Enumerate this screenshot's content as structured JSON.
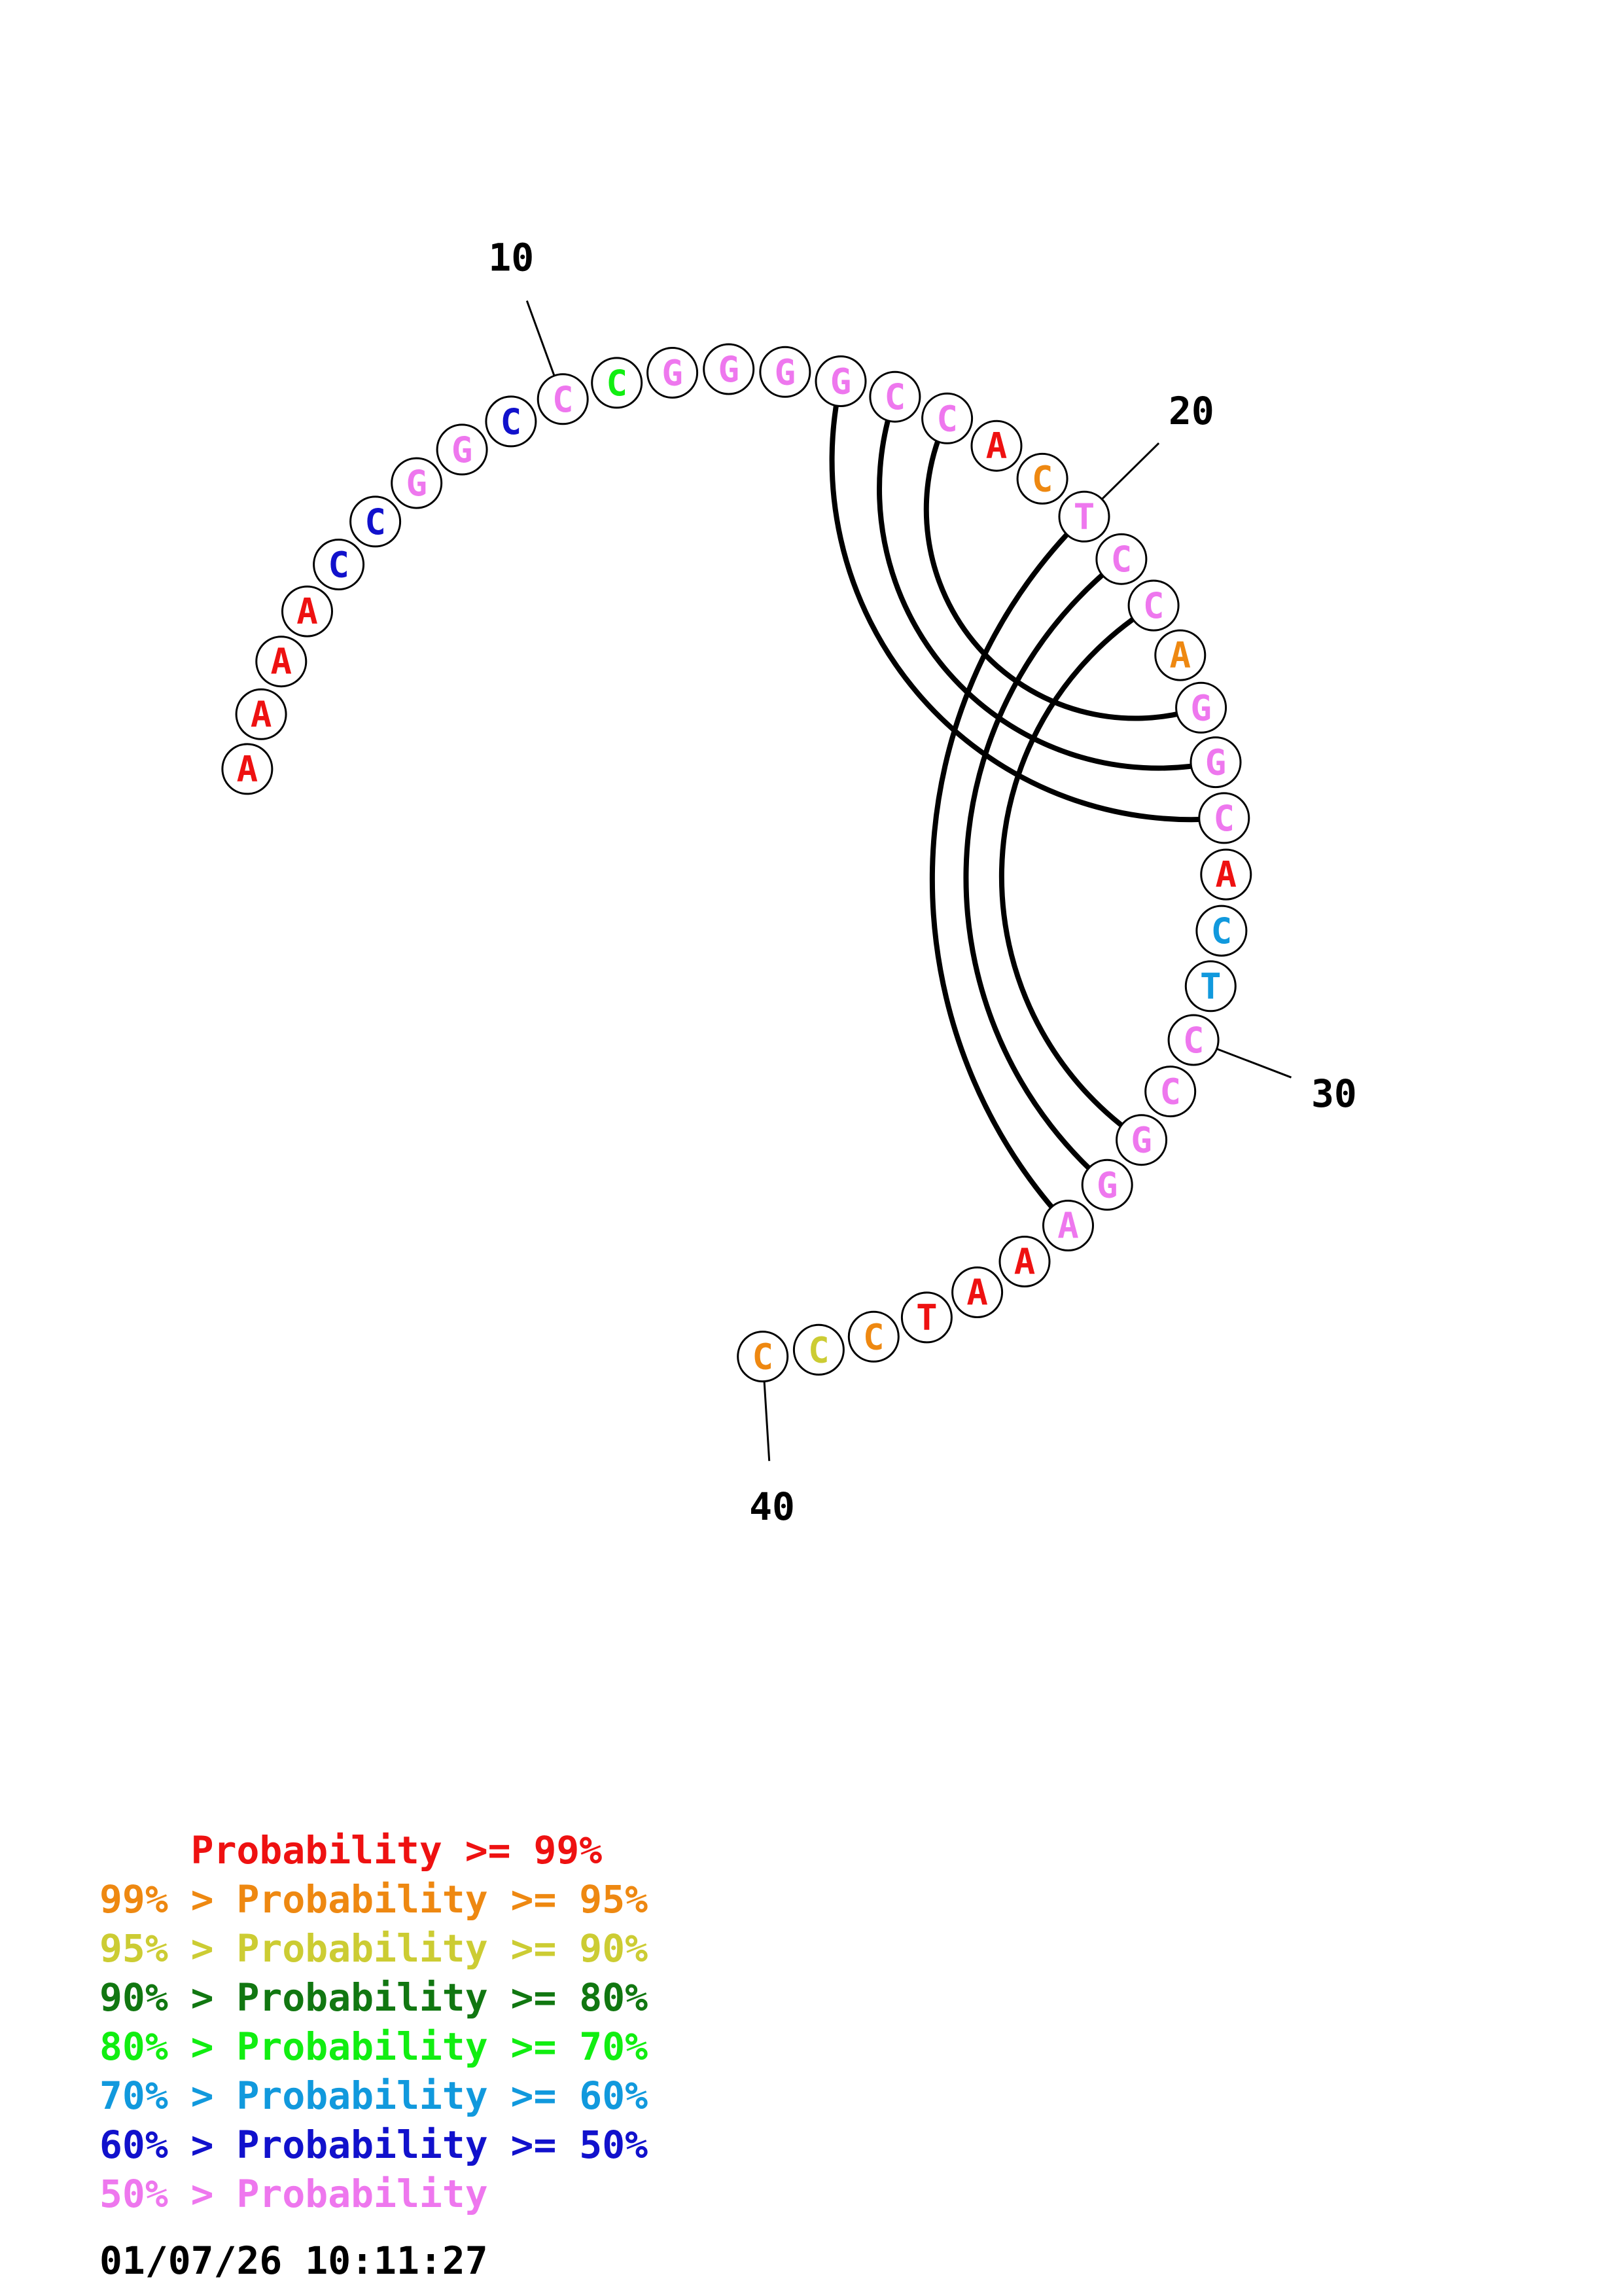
{
  "colors": {
    "p99": "#ee1111",
    "p95": "#ee8811",
    "p90": "#cccc33",
    "p80": "#117711",
    "p70": "#11ee11",
    "p60": "#1199dd",
    "p50": "#1111cc",
    "plow": "#ee77ee"
  },
  "sequence": [
    {
      "n": 1,
      "base": "A",
      "prob": "p99"
    },
    {
      "n": 2,
      "base": "A",
      "prob": "p99"
    },
    {
      "n": 3,
      "base": "A",
      "prob": "p99"
    },
    {
      "n": 4,
      "base": "A",
      "prob": "p99"
    },
    {
      "n": 5,
      "base": "C",
      "prob": "p50"
    },
    {
      "n": 6,
      "base": "C",
      "prob": "p50"
    },
    {
      "n": 7,
      "base": "G",
      "prob": "plow"
    },
    {
      "n": 8,
      "base": "G",
      "prob": "plow"
    },
    {
      "n": 9,
      "base": "C",
      "prob": "p50"
    },
    {
      "n": 10,
      "base": "C",
      "prob": "plow"
    },
    {
      "n": 11,
      "base": "C",
      "prob": "p70"
    },
    {
      "n": 12,
      "base": "G",
      "prob": "plow"
    },
    {
      "n": 13,
      "base": "G",
      "prob": "plow"
    },
    {
      "n": 14,
      "base": "G",
      "prob": "plow"
    },
    {
      "n": 15,
      "base": "G",
      "prob": "plow"
    },
    {
      "n": 16,
      "base": "C",
      "prob": "plow"
    },
    {
      "n": 17,
      "base": "C",
      "prob": "plow"
    },
    {
      "n": 18,
      "base": "A",
      "prob": "p99"
    },
    {
      "n": 19,
      "base": "C",
      "prob": "p95"
    },
    {
      "n": 20,
      "base": "T",
      "prob": "plow"
    },
    {
      "n": 21,
      "base": "C",
      "prob": "plow"
    },
    {
      "n": 22,
      "base": "C",
      "prob": "plow"
    },
    {
      "n": 23,
      "base": "A",
      "prob": "p95"
    },
    {
      "n": 24,
      "base": "G",
      "prob": "plow"
    },
    {
      "n": 25,
      "base": "G",
      "prob": "plow"
    },
    {
      "n": 26,
      "base": "C",
      "prob": "plow"
    },
    {
      "n": 27,
      "base": "A",
      "prob": "p99"
    },
    {
      "n": 28,
      "base": "C",
      "prob": "p60"
    },
    {
      "n": 29,
      "base": "T",
      "prob": "p60"
    },
    {
      "n": 30,
      "base": "C",
      "prob": "plow"
    },
    {
      "n": 31,
      "base": "C",
      "prob": "plow"
    },
    {
      "n": 32,
      "base": "G",
      "prob": "plow"
    },
    {
      "n": 33,
      "base": "G",
      "prob": "plow"
    },
    {
      "n": 34,
      "base": "A",
      "prob": "plow"
    },
    {
      "n": 35,
      "base": "A",
      "prob": "p99"
    },
    {
      "n": 36,
      "base": "A",
      "prob": "p99"
    },
    {
      "n": 37,
      "base": "T",
      "prob": "p99"
    },
    {
      "n": 38,
      "base": "C",
      "prob": "p95"
    },
    {
      "n": 39,
      "base": "C",
      "prob": "p90"
    },
    {
      "n": 40,
      "base": "C",
      "prob": "p95"
    }
  ],
  "pairs": [
    [
      15,
      26
    ],
    [
      16,
      25
    ],
    [
      17,
      24
    ],
    [
      20,
      34
    ],
    [
      21,
      33
    ],
    [
      22,
      32
    ]
  ],
  "tick_marks": [
    {
      "n": 10,
      "label": "10"
    },
    {
      "n": 20,
      "label": "20"
    },
    {
      "n": 30,
      "label": "30"
    },
    {
      "n": 40,
      "label": "40"
    }
  ],
  "legend": [
    {
      "text": "    Probability >= 99%",
      "color": "p99"
    },
    {
      "text": "99% > Probability >= 95%",
      "color": "p95"
    },
    {
      "text": "95% > Probability >= 90%",
      "color": "p90"
    },
    {
      "text": "90% > Probability >= 80%",
      "color": "p80"
    },
    {
      "text": "80% > Probability >= 70%",
      "color": "p70"
    },
    {
      "text": "70% > Probability >= 60%",
      "color": "p60"
    },
    {
      "text": "60% > Probability >= 50%",
      "color": "p50"
    },
    {
      "text": "50% > Probability",
      "color": "plow"
    }
  ],
  "timestamp": "01/07/26 10:11:27"
}
